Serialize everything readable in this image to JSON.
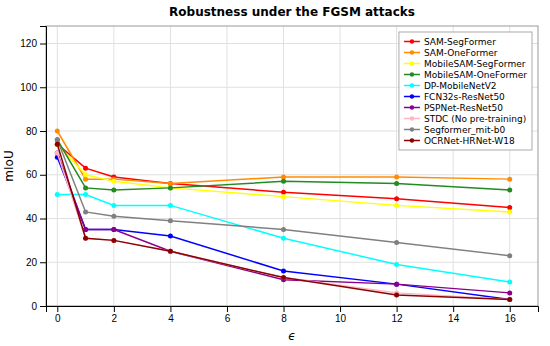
{
  "chart_data": {
    "type": "line",
    "title": "Robustness under the FGSM attacks",
    "xlabel": "ϵ",
    "ylabel": "mIoU",
    "x": [
      0,
      1,
      2,
      4,
      8,
      12,
      16
    ],
    "series": [
      {
        "name": "SAM-SegFormer",
        "color": "#ff0000",
        "marker": "o",
        "values": [
          74,
          63,
          59,
          56,
          52,
          49,
          45
        ]
      },
      {
        "name": "SAM-OneFormer",
        "color": "#ff8c00",
        "marker": "o",
        "values": [
          80,
          58,
          58,
          56,
          59,
          59,
          58
        ]
      },
      {
        "name": "MobileSAM-SegFormer",
        "color": "#ffff00",
        "marker": "o",
        "values": [
          74,
          60,
          57,
          54,
          50,
          46,
          43
        ]
      },
      {
        "name": "MobileSAM-OneFormer",
        "color": "#228b22",
        "marker": "o",
        "values": [
          76,
          54,
          53,
          54,
          57,
          56,
          53
        ]
      },
      {
        "name": "DP-MobileNetV2",
        "color": "#00ffff",
        "marker": "o",
        "values": [
          51,
          51,
          46,
          46,
          31,
          19,
          11
        ]
      },
      {
        "name": "FCN32s-ResNet50",
        "color": "#0000ff",
        "marker": "o",
        "values": [
          68,
          35,
          35,
          32,
          16,
          10,
          3
        ]
      },
      {
        "name": "PSPNet-ResNet50",
        "color": "#8b008b",
        "marker": "o",
        "values": [
          70,
          35,
          35,
          25,
          12,
          10,
          6
        ]
      },
      {
        "name": "STDC (No pre-training)",
        "color": "#ffb6c1",
        "marker": "o",
        "values": [
          70,
          31,
          30,
          25,
          13,
          6,
          3
        ]
      },
      {
        "name": "Segformer_mit-b0",
        "color": "#808080",
        "marker": "o",
        "values": [
          76,
          43,
          41,
          39,
          35,
          29,
          23
        ]
      },
      {
        "name": "OCRNet-HRNet-W18",
        "color": "#8b0000",
        "marker": "o",
        "values": [
          74,
          31,
          30,
          25,
          13,
          5,
          3
        ]
      }
    ],
    "xlim": [
      -0.4,
      17.0
    ],
    "ylim": [
      0,
      128
    ],
    "xticks": [
      0,
      2,
      4,
      6,
      8,
      10,
      12,
      14,
      16
    ],
    "yticks": [
      0,
      20,
      40,
      60,
      80,
      100,
      120
    ],
    "grid": true,
    "legend": "upper right"
  }
}
